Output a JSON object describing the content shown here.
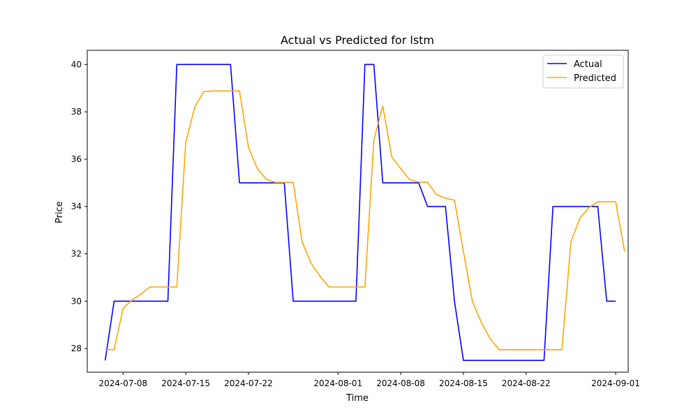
{
  "chart_data": {
    "type": "line",
    "title": "Actual vs Predicted for lstm",
    "xlabel": "Time",
    "ylabel": "Price",
    "xlim": [
      "2024-07-04",
      "2024-09-02"
    ],
    "ylim": [
      27,
      40.6
    ],
    "x_ticks": [
      "2024-07-08",
      "2024-07-15",
      "2024-07-22",
      "2024-08-01",
      "2024-08-08",
      "2024-08-15",
      "2024-08-22",
      "2024-09-01"
    ],
    "y_ticks": [
      28,
      30,
      32,
      34,
      36,
      38,
      40
    ],
    "grid": false,
    "legend_position": "top-right",
    "series": [
      {
        "name": "Actual",
        "color": "#0000ff",
        "points": [
          [
            "2024-07-06",
            27.5
          ],
          [
            "2024-07-07",
            30.0
          ],
          [
            "2024-07-08",
            30.0
          ],
          [
            "2024-07-09",
            30.0
          ],
          [
            "2024-07-10",
            30.0
          ],
          [
            "2024-07-11",
            30.0
          ],
          [
            "2024-07-12",
            30.0
          ],
          [
            "2024-07-13",
            30.0
          ],
          [
            "2024-07-14",
            40.0
          ],
          [
            "2024-07-15",
            40.0
          ],
          [
            "2024-07-16",
            40.0
          ],
          [
            "2024-07-17",
            40.0
          ],
          [
            "2024-07-18",
            40.0
          ],
          [
            "2024-07-19",
            40.0
          ],
          [
            "2024-07-20",
            40.0
          ],
          [
            "2024-07-21",
            35.0
          ],
          [
            "2024-07-22",
            35.0
          ],
          [
            "2024-07-23",
            35.0
          ],
          [
            "2024-07-24",
            35.0
          ],
          [
            "2024-07-25",
            35.0
          ],
          [
            "2024-07-26",
            35.0
          ],
          [
            "2024-07-27",
            30.0
          ],
          [
            "2024-07-28",
            30.0
          ],
          [
            "2024-07-29",
            30.0
          ],
          [
            "2024-07-30",
            30.0
          ],
          [
            "2024-07-31",
            30.0
          ],
          [
            "2024-08-01",
            30.0
          ],
          [
            "2024-08-02",
            30.0
          ],
          [
            "2024-08-03",
            30.0
          ],
          [
            "2024-08-04",
            40.0
          ],
          [
            "2024-08-05",
            40.0
          ],
          [
            "2024-08-06",
            35.0
          ],
          [
            "2024-08-07",
            35.0
          ],
          [
            "2024-08-08",
            35.0
          ],
          [
            "2024-08-09",
            35.0
          ],
          [
            "2024-08-10",
            35.0
          ],
          [
            "2024-08-11",
            34.0
          ],
          [
            "2024-08-12",
            34.0
          ],
          [
            "2024-08-13",
            34.0
          ],
          [
            "2024-08-14",
            30.0
          ],
          [
            "2024-08-15",
            27.5
          ],
          [
            "2024-08-16",
            27.5
          ],
          [
            "2024-08-17",
            27.5
          ],
          [
            "2024-08-18",
            27.5
          ],
          [
            "2024-08-19",
            27.5
          ],
          [
            "2024-08-20",
            27.5
          ],
          [
            "2024-08-21",
            27.5
          ],
          [
            "2024-08-22",
            27.5
          ],
          [
            "2024-08-23",
            27.5
          ],
          [
            "2024-08-24",
            27.5
          ],
          [
            "2024-08-25",
            34.0
          ],
          [
            "2024-08-26",
            34.0
          ],
          [
            "2024-08-27",
            34.0
          ],
          [
            "2024-08-28",
            34.0
          ],
          [
            "2024-08-29",
            34.0
          ],
          [
            "2024-08-30",
            34.0
          ],
          [
            "2024-08-31",
            30.0
          ],
          [
            "2024-09-01",
            30.0
          ]
        ]
      },
      {
        "name": "Predicted",
        "color": "#ffa500",
        "points": [
          [
            "2024-07-06",
            27.95
          ],
          [
            "2024-07-07",
            27.95
          ],
          [
            "2024-07-08",
            29.7
          ],
          [
            "2024-07-09",
            30.05
          ],
          [
            "2024-07-10",
            30.3
          ],
          [
            "2024-07-11",
            30.6
          ],
          [
            "2024-07-12",
            30.6
          ],
          [
            "2024-07-13",
            30.6
          ],
          [
            "2024-07-14",
            30.6
          ],
          [
            "2024-07-15",
            36.7
          ],
          [
            "2024-07-16",
            38.2
          ],
          [
            "2024-07-17",
            38.85
          ],
          [
            "2024-07-18",
            38.88
          ],
          [
            "2024-07-19",
            38.88
          ],
          [
            "2024-07-20",
            38.88
          ],
          [
            "2024-07-21",
            38.88
          ],
          [
            "2024-07-22",
            36.5
          ],
          [
            "2024-07-23",
            35.6
          ],
          [
            "2024-07-24",
            35.15
          ],
          [
            "2024-07-25",
            35.02
          ],
          [
            "2024-07-26",
            35.02
          ],
          [
            "2024-07-27",
            35.02
          ],
          [
            "2024-07-28",
            32.5
          ],
          [
            "2024-07-29",
            31.6
          ],
          [
            "2024-07-30",
            31.05
          ],
          [
            "2024-07-31",
            30.6
          ],
          [
            "2024-08-01",
            30.6
          ],
          [
            "2024-08-02",
            30.6
          ],
          [
            "2024-08-03",
            30.6
          ],
          [
            "2024-08-04",
            30.6
          ],
          [
            "2024-08-05",
            36.8
          ],
          [
            "2024-08-06",
            38.25
          ],
          [
            "2024-08-07",
            36.1
          ],
          [
            "2024-08-08",
            35.6
          ],
          [
            "2024-08-09",
            35.13
          ],
          [
            "2024-08-10",
            35.03
          ],
          [
            "2024-08-11",
            35.02
          ],
          [
            "2024-08-12",
            34.5
          ],
          [
            "2024-08-13",
            34.35
          ],
          [
            "2024-08-14",
            34.27
          ],
          [
            "2024-08-15",
            32.1
          ],
          [
            "2024-08-16",
            30.0
          ],
          [
            "2024-08-17",
            29.1
          ],
          [
            "2024-08-18",
            28.4
          ],
          [
            "2024-08-19",
            27.95
          ],
          [
            "2024-08-20",
            27.95
          ],
          [
            "2024-08-21",
            27.95
          ],
          [
            "2024-08-22",
            27.95
          ],
          [
            "2024-08-23",
            27.95
          ],
          [
            "2024-08-24",
            27.95
          ],
          [
            "2024-08-25",
            27.95
          ],
          [
            "2024-08-26",
            27.95
          ],
          [
            "2024-08-27",
            32.5
          ],
          [
            "2024-08-28",
            33.5
          ],
          [
            "2024-08-29",
            33.95
          ],
          [
            "2024-08-30",
            34.2
          ],
          [
            "2024-08-31",
            34.2
          ],
          [
            "2024-09-01",
            34.2
          ],
          [
            "2024-09-02",
            32.1
          ]
        ]
      }
    ]
  }
}
